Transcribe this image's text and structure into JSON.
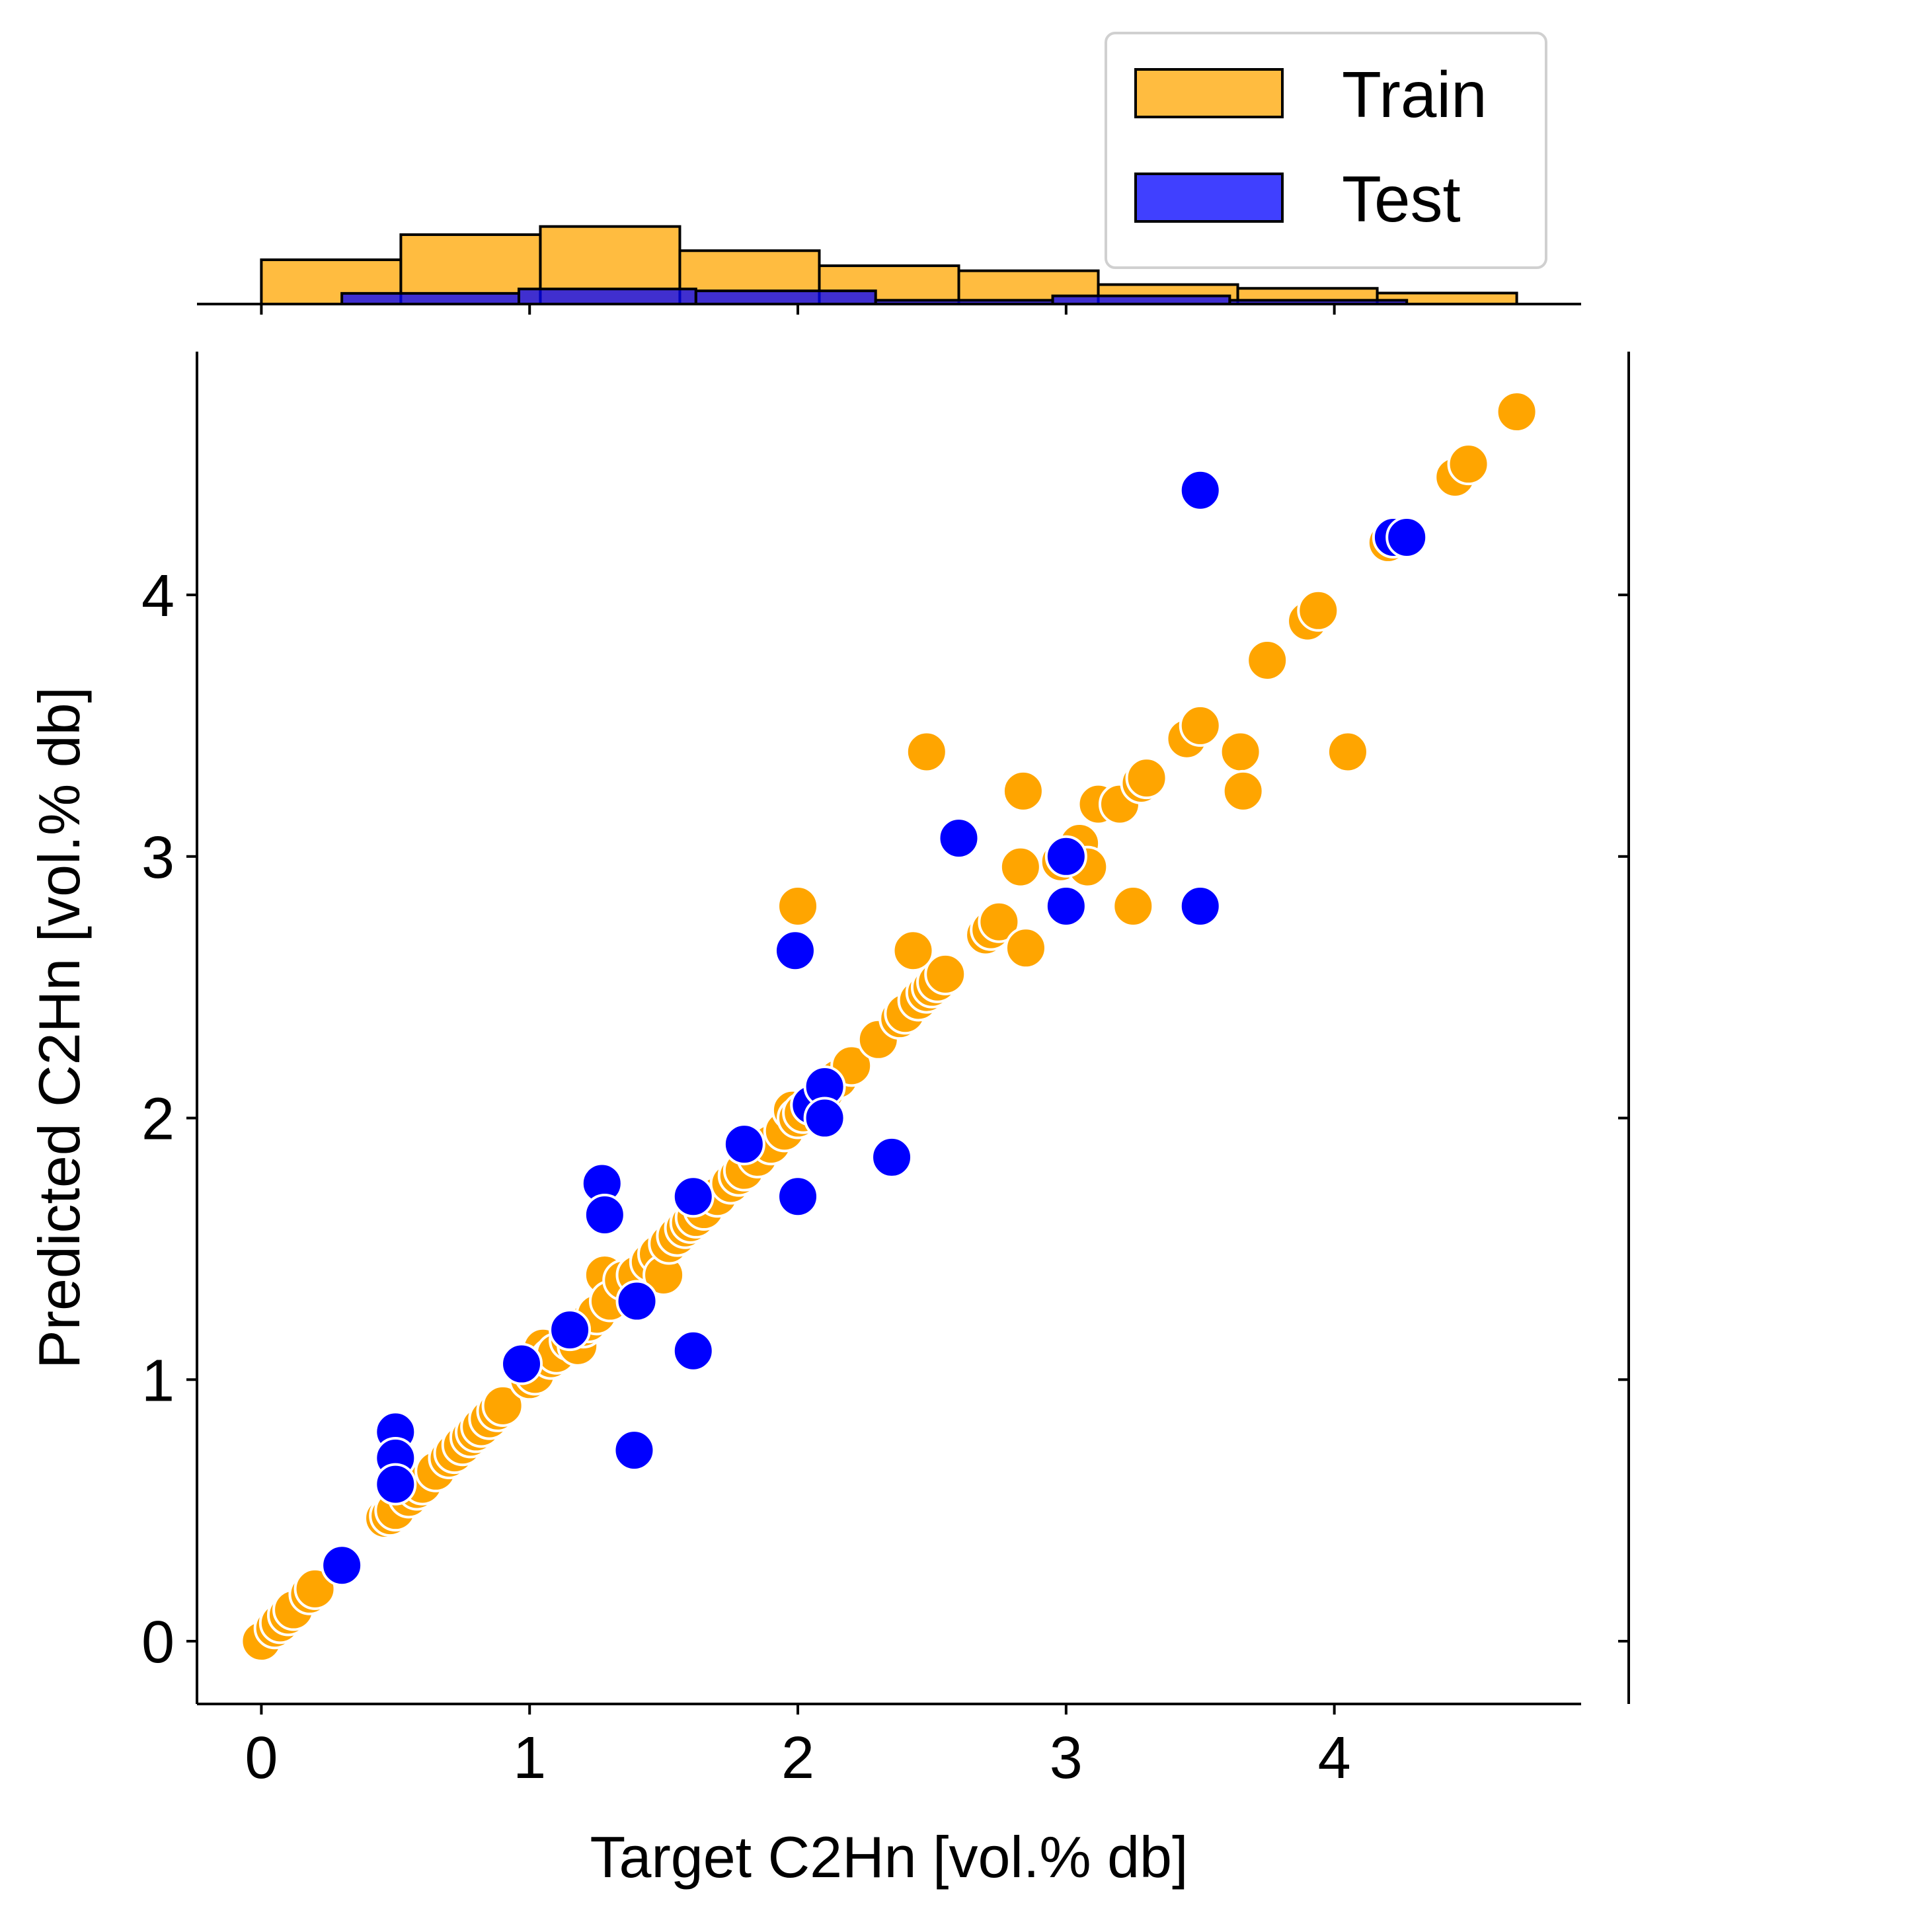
{
  "chart_data": {
    "type": "scatter",
    "xlabel": "Target C2Hn [vol.% db]",
    "ylabel": "Predicted C2Hn [vol.% db]",
    "xlim": [
      -0.24,
      4.92
    ],
    "ylim": [
      -0.24,
      4.93
    ],
    "x_ticks": [
      0,
      1,
      2,
      3,
      4
    ],
    "y_ticks": [
      0,
      1,
      2,
      3,
      4
    ],
    "grid": false,
    "legend": {
      "position": "top-right",
      "entries": [
        "Train",
        "Test"
      ]
    },
    "colors": {
      "Train": "#FFA500",
      "Test": "#0000FF",
      "edge": "#000000"
    },
    "series": [
      {
        "name": "Train",
        "x": [
          0.0,
          0.05,
          0.07,
          0.1,
          0.12,
          0.18,
          0.2,
          0.46,
          0.48,
          0.5,
          0.55,
          0.58,
          0.6,
          0.65,
          0.7,
          0.72,
          0.75,
          0.78,
          0.8,
          0.82,
          0.85,
          0.88,
          0.9,
          1.0,
          1.02,
          1.05,
          1.08,
          1.1,
          1.15,
          1.18,
          1.2,
          1.22,
          1.25,
          1.28,
          1.3,
          1.35,
          1.4,
          1.45,
          1.48,
          1.5,
          1.52,
          1.55,
          1.58,
          1.6,
          1.62,
          1.65,
          1.7,
          1.75,
          1.78,
          1.8,
          1.85,
          1.9,
          1.95,
          1.98,
          2.0,
          2.02,
          2.05,
          2.08,
          2.1,
          2.15,
          2.2,
          2.3,
          2.38,
          2.4,
          2.45,
          2.48,
          2.5,
          2.52,
          2.55,
          2.7,
          2.72,
          2.75,
          2.83,
          2.84,
          2.85,
          2.98,
          3.05,
          3.08,
          3.12,
          3.2,
          3.25,
          3.28,
          3.3,
          3.45,
          3.5,
          3.65,
          3.66,
          3.75,
          3.9,
          3.94,
          4.05,
          4.2,
          4.45,
          4.5,
          4.68,
          2.48,
          2.0,
          2.43
        ],
        "y": [
          0.0,
          0.05,
          0.07,
          0.1,
          0.12,
          0.18,
          0.2,
          0.47,
          0.48,
          0.5,
          0.55,
          0.58,
          0.6,
          0.65,
          0.7,
          0.72,
          0.75,
          0.78,
          0.8,
          0.82,
          0.85,
          0.88,
          0.9,
          1.0,
          1.02,
          1.12,
          1.08,
          1.1,
          1.15,
          1.13,
          1.2,
          1.22,
          1.25,
          1.4,
          1.3,
          1.38,
          1.4,
          1.45,
          1.48,
          1.4,
          1.52,
          1.55,
          1.58,
          1.6,
          1.62,
          1.65,
          1.7,
          1.75,
          1.78,
          1.8,
          1.85,
          1.9,
          1.95,
          2.03,
          2.0,
          2.02,
          2.05,
          2.08,
          2.1,
          2.15,
          2.2,
          2.3,
          2.38,
          2.4,
          2.45,
          2.48,
          2.5,
          2.52,
          2.55,
          2.7,
          2.72,
          2.75,
          2.96,
          3.25,
          2.65,
          2.98,
          3.05,
          2.96,
          3.2,
          3.2,
          2.81,
          3.28,
          3.3,
          3.45,
          3.5,
          3.4,
          3.25,
          3.75,
          3.9,
          3.94,
          3.4,
          4.2,
          4.45,
          4.5,
          4.7,
          3.4,
          2.81,
          2.64
        ]
      },
      {
        "name": "Test",
        "x": [
          0.3,
          0.5,
          0.5,
          0.5,
          0.97,
          1.15,
          1.27,
          1.28,
          1.39,
          1.4,
          1.61,
          1.61,
          1.8,
          1.99,
          2.0,
          2.05,
          2.1,
          2.1,
          2.35,
          2.6,
          3.0,
          3.0,
          3.5,
          3.5,
          4.22,
          4.27
        ],
        "y": [
          0.29,
          0.8,
          0.7,
          0.6,
          1.06,
          1.19,
          1.75,
          1.63,
          0.73,
          1.3,
          1.11,
          1.7,
          1.9,
          2.64,
          1.7,
          2.05,
          2.12,
          2.0,
          1.85,
          3.07,
          3.0,
          2.81,
          4.4,
          2.81,
          4.22,
          4.22
        ]
      }
    ],
    "marginal_histogram": {
      "type": "histogram",
      "orientation": "top",
      "series": [
        {
          "name": "Train",
          "bin_edges": [
            0.0,
            0.52,
            1.04,
            1.56,
            2.08,
            2.6,
            3.12,
            3.64,
            4.16,
            4.68
          ],
          "counts": [
            14.1,
            22.1,
            24.7,
            17.0,
            12.2,
            10.6,
            6.2,
            5.0,
            3.5
          ]
        },
        {
          "name": "Test",
          "bin_edges": [
            0.3,
            0.96,
            1.62,
            2.29,
            2.95,
            3.61,
            4.27
          ],
          "counts": [
            3.4,
            4.8,
            4.2,
            1.2,
            2.6,
            1.2
          ]
        }
      ]
    }
  }
}
